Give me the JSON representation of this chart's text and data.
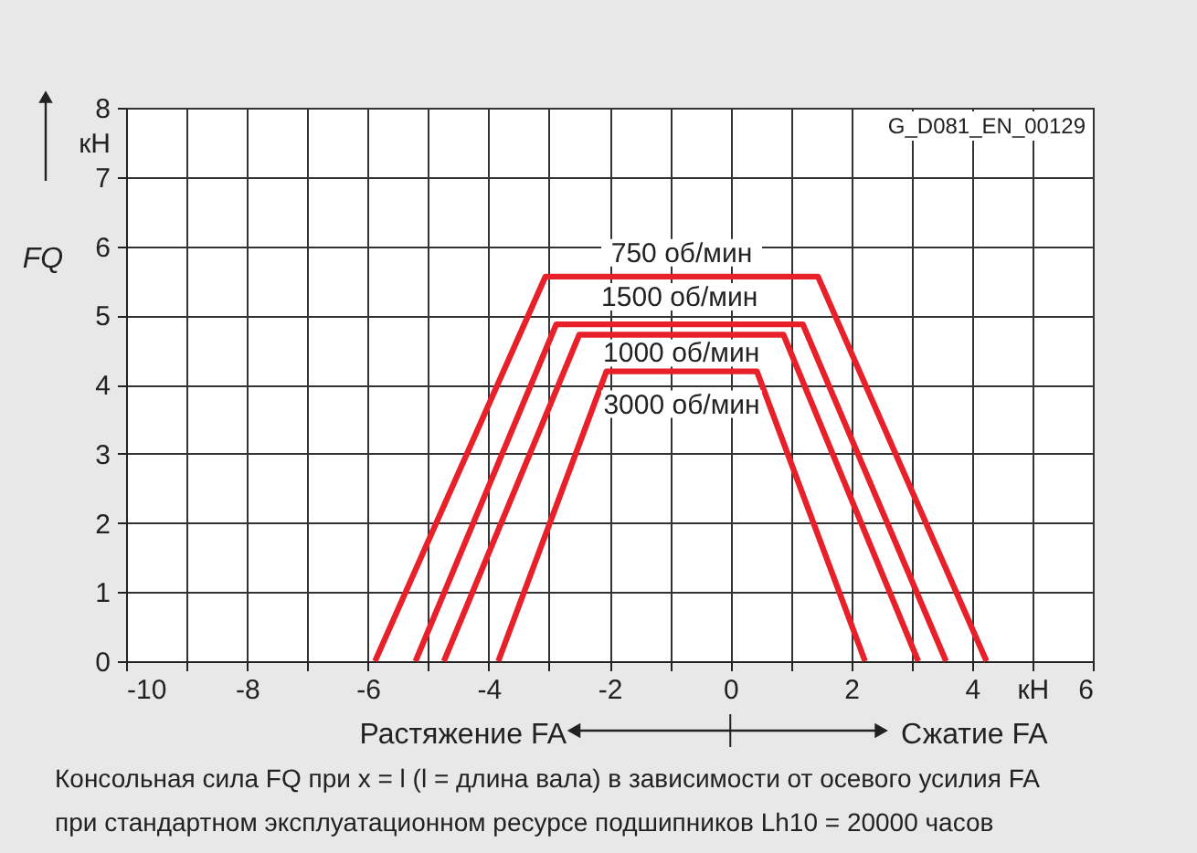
{
  "chart_data": {
    "type": "line",
    "ylabel": "FQ",
    "xlim": [
      -10,
      6
    ],
    "ylim": [
      0,
      8
    ],
    "xticks": [
      -10,
      {
        "value": -9,
        "label": null
      },
      -8,
      {
        "value": -7,
        "label": null
      },
      -6,
      {
        "value": -5,
        "label": null
      },
      -4,
      {
        "value": -3,
        "label": null
      },
      -2,
      {
        "value": -1,
        "label": null
      },
      0,
      {
        "value": 1,
        "label": null
      },
      2,
      {
        "value": 3,
        "label": null
      },
      4,
      {
        "value": 5,
        "label": "кН"
      },
      6
    ],
    "yticks": [
      0,
      1,
      2,
      3,
      4,
      5,
      6,
      7,
      {
        "value": 7.5,
        "label": "кН"
      },
      8
    ],
    "grid": true,
    "legend": false,
    "marker": "none",
    "line_style": "solid",
    "series": [
      {
        "name": "750 об/мин",
        "color": "#e8202a",
        "x": [
          -5.88,
          -3.06,
          1.45,
          4.24
        ],
        "values": [
          0,
          5.56,
          5.56,
          0
        ]
      },
      {
        "name": "1500 об/мин",
        "color": "#e8202a",
        "x": [
          -5.21,
          -2.88,
          1.2,
          3.57
        ],
        "values": [
          0,
          4.87,
          4.87,
          0
        ]
      },
      {
        "name": "1000 об/мин",
        "color": "#e8202a",
        "x": [
          -4.74,
          -2.5,
          0.88,
          3.11
        ],
        "values": [
          0,
          4.72,
          4.72,
          0
        ]
      },
      {
        "name": "3000 об/мин",
        "color": "#e8202a",
        "x": [
          -3.84,
          -2.05,
          0.44,
          2.23
        ],
        "values": [
          0,
          4.19,
          4.19,
          0
        ]
      }
    ],
    "annotations": [
      "G_D081_EN_00129",
      "Растяжение FA",
      "Сжатие FA",
      "Консольная сила FQ при x = l (l = длина вала) в зависимости от осевого усилия  FA",
      "при стандартном эксплуатационном ресурсе подшипников Lh10 = 20000 часов"
    ]
  }
}
